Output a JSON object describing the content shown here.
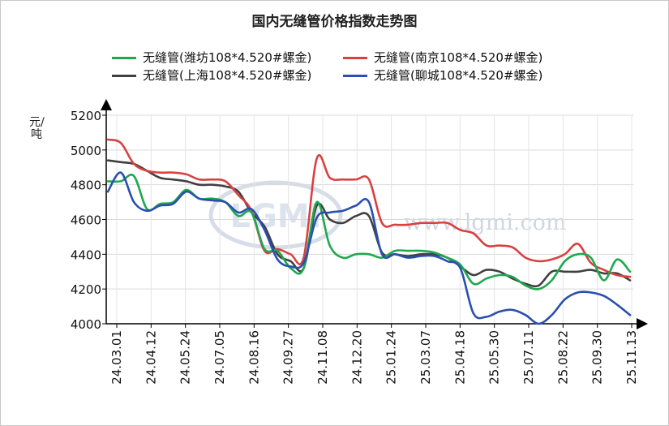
{
  "chart_data": {
    "type": "line",
    "title": "国内无缝管价格指数走势图",
    "ylabel": "元/吨",
    "xlabel": "",
    "ylim": [
      4000,
      5200
    ],
    "yticks": [
      4000,
      4200,
      4400,
      4600,
      4800,
      5000,
      5200
    ],
    "grid": true,
    "legend_position": "top",
    "watermark": "www.lgmi.com",
    "watermark_logo": "LGMI",
    "xtick_labels": [
      "24.03.01",
      "24.04.12",
      "24.05.24",
      "24.07.05",
      "24.08.16",
      "24.09.27",
      "24.11.08",
      "24.12.20",
      "25.01.24",
      "25.03.07",
      "25.04.18",
      "25.05.30",
      "25.07.11",
      "25.08.22",
      "25.09.30",
      "25.11.13"
    ],
    "x_point_count": 41,
    "series": [
      {
        "name": "无缝管(潍坊108*4.520#螺金)",
        "color": "#1fa84f",
        "values": [
          4820,
          4820,
          4850,
          4660,
          4690,
          4700,
          4770,
          4720,
          4720,
          4700,
          4620,
          4640,
          4430,
          4420,
          4320,
          4320,
          4700,
          4450,
          4380,
          4400,
          4400,
          4380,
          4420,
          4420,
          4420,
          4410,
          4380,
          4340,
          4230,
          4260,
          4280,
          4270,
          4220,
          4200,
          4250,
          4360,
          4400,
          4380,
          4250,
          4370,
          4300
        ]
      },
      {
        "name": "无缝管(南京108*4.520#螺金)",
        "color": "#d94040",
        "values": [
          5060,
          5040,
          4920,
          4880,
          4870,
          4870,
          4860,
          4830,
          4830,
          4820,
          4740,
          4650,
          4420,
          4430,
          4400,
          4380,
          4950,
          4840,
          4830,
          4830,
          4830,
          4580,
          4570,
          4570,
          4580,
          4580,
          4580,
          4540,
          4520,
          4450,
          4450,
          4440,
          4380,
          4360,
          4370,
          4400,
          4460,
          4350,
          4310,
          4280,
          4270
        ]
      },
      {
        "name": "无缝管(上海108*4.520#螺金)",
        "color": "#404040",
        "values": [
          4940,
          4930,
          4920,
          4880,
          4840,
          4830,
          4820,
          4800,
          4800,
          4790,
          4760,
          4640,
          4560,
          4400,
          4360,
          4320,
          4680,
          4600,
          4580,
          4620,
          4620,
          4410,
          4400,
          4390,
          4400,
          4400,
          4380,
          4330,
          4280,
          4310,
          4300,
          4260,
          4230,
          4220,
          4300,
          4300,
          4300,
          4310,
          4290,
          4290,
          4250
        ]
      },
      {
        "name": "无缝管(聊城108*4.520#螺金)",
        "color": "#2a4fb0",
        "values": [
          4760,
          4870,
          4700,
          4650,
          4680,
          4690,
          4760,
          4720,
          4710,
          4700,
          4640,
          4660,
          4540,
          4370,
          4330,
          4350,
          4610,
          4640,
          4650,
          4680,
          4700,
          4400,
          4400,
          4380,
          4390,
          4390,
          4360,
          4320,
          4060,
          4040,
          4070,
          4080,
          4050,
          4000,
          4050,
          4140,
          4180,
          4180,
          4160,
          4110,
          4050
        ]
      }
    ]
  }
}
